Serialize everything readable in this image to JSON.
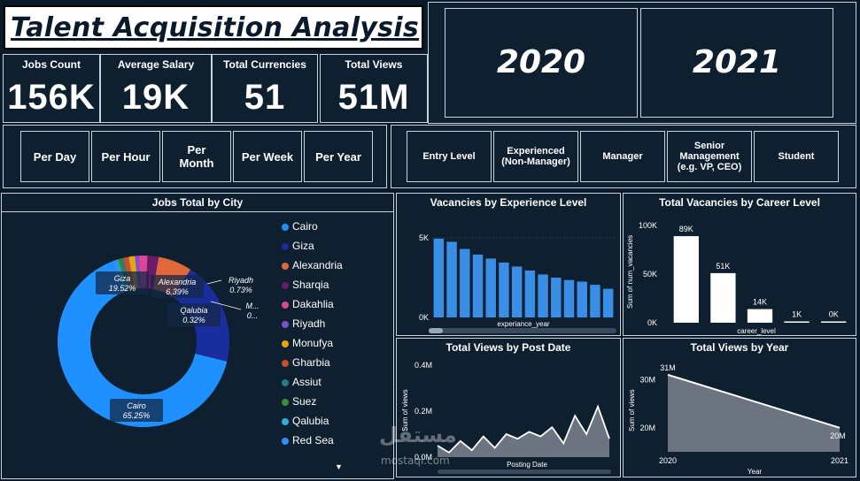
{
  "title": "Talent Acquisition Analysis",
  "kpis": [
    {
      "label": "Jobs Count",
      "value": "156K"
    },
    {
      "label": "Average Salary",
      "value": "19K"
    },
    {
      "label": "Total Currencies",
      "value": "51"
    },
    {
      "label": "Total Views",
      "value": "51M"
    }
  ],
  "years": [
    "2020",
    "2021"
  ],
  "period_buttons": [
    "Per Day",
    "Per Hour",
    "Per Month",
    "Per Week",
    "Per Year"
  ],
  "level_buttons": [
    "Entry Level",
    "Experienced (Non-Manager)",
    "Manager",
    "Senior Management (e.g. VP, CEO)",
    "Student"
  ],
  "watermark": {
    "main": "مستقل",
    "sub": "mostaql.com"
  },
  "chart_data": [
    {
      "type": "pie",
      "title": "Jobs Total by City",
      "categories": [
        "Cairo",
        "Giza",
        "Alexandria",
        "Sharqia",
        "Dakahlia",
        "Riyadh",
        "Monufya",
        "Gharbia",
        "Assiut",
        "Suez",
        "Qalubia",
        "Red Sea"
      ],
      "values": [
        65.25,
        19.52,
        6.39,
        2.1,
        1.6,
        0.73,
        1.2,
        1.0,
        0.6,
        0.5,
        0.32,
        0.79
      ],
      "colors": [
        "#1e90ff",
        "#1a2d9e",
        "#e0683a",
        "#6a1b6a",
        "#e0449a",
        "#7b52c8",
        "#e8a317",
        "#c9502c",
        "#2a7d7d",
        "#3b8c3b",
        "#2bb0d8",
        "#2f8fff"
      ],
      "slice_labels": [
        {
          "city": "Cairo",
          "pct": "65.25%"
        },
        {
          "city": "Giza",
          "pct": "19.52%"
        },
        {
          "city": "Alexandria",
          "pct": "6.39%"
        },
        {
          "city": "Riyadh",
          "pct": "0.73%"
        },
        {
          "city": "Qalubia",
          "pct": "0.32%"
        },
        {
          "city": "M...",
          "pct": "0..."
        }
      ],
      "legend": "right"
    },
    {
      "type": "bar",
      "title": "Vacancies by Experience Level",
      "xlabel": "experiance_year",
      "yticks": [
        "5K",
        "0K"
      ],
      "values": [
        4950,
        4750,
        4300,
        3950,
        3700,
        3450,
        3200,
        2950,
        2700,
        2500,
        2350,
        2250,
        2050,
        1800
      ],
      "ylim": [
        0,
        6000
      ],
      "color": "#3a8ee6"
    },
    {
      "type": "bar",
      "title": "Total Vacancies by Career Level",
      "xlabel": "career_level",
      "ylabel": "Sum of num_vacancies",
      "yticks": [
        "100K",
        "50K",
        "0K"
      ],
      "values": [
        89,
        51,
        14,
        1,
        0
      ],
      "value_labels": [
        "89K",
        "51K",
        "14K",
        "1K",
        "0K"
      ],
      "ylim": [
        0,
        100
      ],
      "color": "#ffffff"
    },
    {
      "type": "area",
      "title": "Total Views by Post Date",
      "xlabel": "Posting Date",
      "ylabel": "Sum of views",
      "yticks": [
        "0.4M",
        "0.2M",
        "0.0M"
      ],
      "ylim": [
        0,
        0.4
      ],
      "values": [
        0.05,
        0.02,
        0.07,
        0.03,
        0.09,
        0.04,
        0.1,
        0.08,
        0.11,
        0.09,
        0.13,
        0.06,
        0.18,
        0.1,
        0.22,
        0.08
      ],
      "color": "#ffffff"
    },
    {
      "type": "area",
      "title": "Total Views by Year",
      "xlabel": "Year",
      "ylabel": "Sum of views",
      "categories": [
        "2020",
        "2021"
      ],
      "values": [
        31,
        20
      ],
      "value_labels": [
        "31M",
        "20M"
      ],
      "yticks": [
        "30M",
        "20M"
      ],
      "ylim": [
        15,
        33
      ],
      "color": "#ffffff"
    }
  ]
}
